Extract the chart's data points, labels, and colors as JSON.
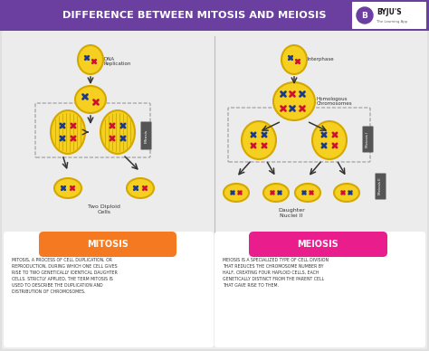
{
  "title": "DIFFERENCE BETWEEN MITOSIS AND MEIOSIS",
  "title_bg": "#6b3fa0",
  "title_color": "#ffffff",
  "bg_color": "#e0e0e0",
  "panel_bg": "#ececec",
  "left_header": "MITOSIS",
  "right_header": "MEIOSIS",
  "left_header_bg": "#f47920",
  "right_header_bg": "#e91e8c",
  "header_text_color": "#ffffff",
  "box_bg": "#ffffff",
  "left_text": "MITOSIS, A PROCESS OF CELL DUPLICATION, OR\nREPRODUCTION, DURING WHICH ONE CELL GIVES\nRISE TO TWO GENETICALLY IDENTICAL DAUGHTER\nCELLS. STRICTLY APPLIED, THE TERM MITOSIS IS\nUSED TO DESCRIBE THE DUPLICATION AND\nDISTRIBUTION OF CHROMOSOMES.",
  "right_text": "MEIOSIS IS A SPECIALIZED TYPE OF CELL DIVISION\nTHAT REDUCES THE CHROMOSOME NUMBER BY\nHALF, CREATING FOUR HAPLOID CELLS, EACH\nGENETICALLY DISTINCT FROM THE PARENT CELL\nTHAT GAVE RISE TO THEM.",
  "dna_replication_label": "DNA\nReplication",
  "interphase_label": "Interphase",
  "homologous_label": "Homologous\nChromosomes",
  "two_diploid_label": "Two Diploid\nCells",
  "daughter_label": "Daughter\nNuclei II",
  "mitosis_label": "Mitosis",
  "meiosis1_label": "Meiosis I",
  "meiosis2_label": "Meiosis II",
  "cell_yellow": "#f5d020",
  "cell_outline": "#d4a800",
  "chrom_blue": "#1a3a8f",
  "chrom_red": "#cc1133",
  "separator_color": "#bbbbbb",
  "arrow_color": "#333333",
  "dashed_box_color": "#999999",
  "byju_bg": "#ffffff"
}
